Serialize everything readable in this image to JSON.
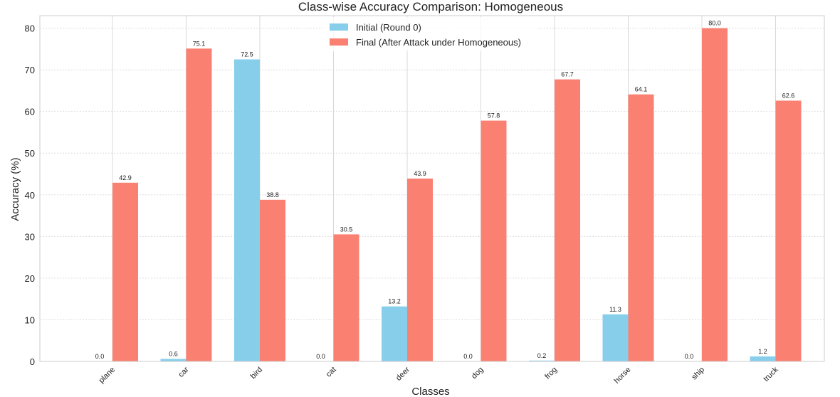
{
  "chart_data": {
    "type": "bar",
    "title": "Class-wise Accuracy Comparison: Homogeneous",
    "xlabel": "Classes",
    "ylabel": "Accuracy (%)",
    "ylim": [
      0,
      83
    ],
    "yticks": [
      0,
      10,
      20,
      30,
      40,
      50,
      60,
      70,
      80
    ],
    "grid": true,
    "legend_position": "top-center",
    "categories": [
      "plane",
      "car",
      "bird",
      "cat",
      "deer",
      "dog",
      "frog",
      "horse",
      "ship",
      "truck"
    ],
    "series": [
      {
        "name": "Initial (Round 0)",
        "color": "#87ceeb",
        "values": [
          0.0,
          0.6,
          72.5,
          0.0,
          13.2,
          0.0,
          0.2,
          11.3,
          0.0,
          1.2
        ],
        "labels": [
          "0.0",
          "0.6",
          "72.5",
          "0.0",
          "13.2",
          "0.0",
          "0.2",
          "11.3",
          "0.0",
          "1.2"
        ]
      },
      {
        "name": "Final (After Attack under Homogeneous)",
        "color": "#fa8072",
        "values": [
          42.9,
          75.1,
          38.8,
          30.5,
          43.9,
          57.8,
          67.7,
          64.1,
          80.0,
          62.6
        ],
        "labels": [
          "42.9",
          "75.1",
          "38.8",
          "30.5",
          "43.9",
          "57.8",
          "67.7",
          "64.1",
          "80.0",
          "62.6"
        ]
      }
    ]
  }
}
